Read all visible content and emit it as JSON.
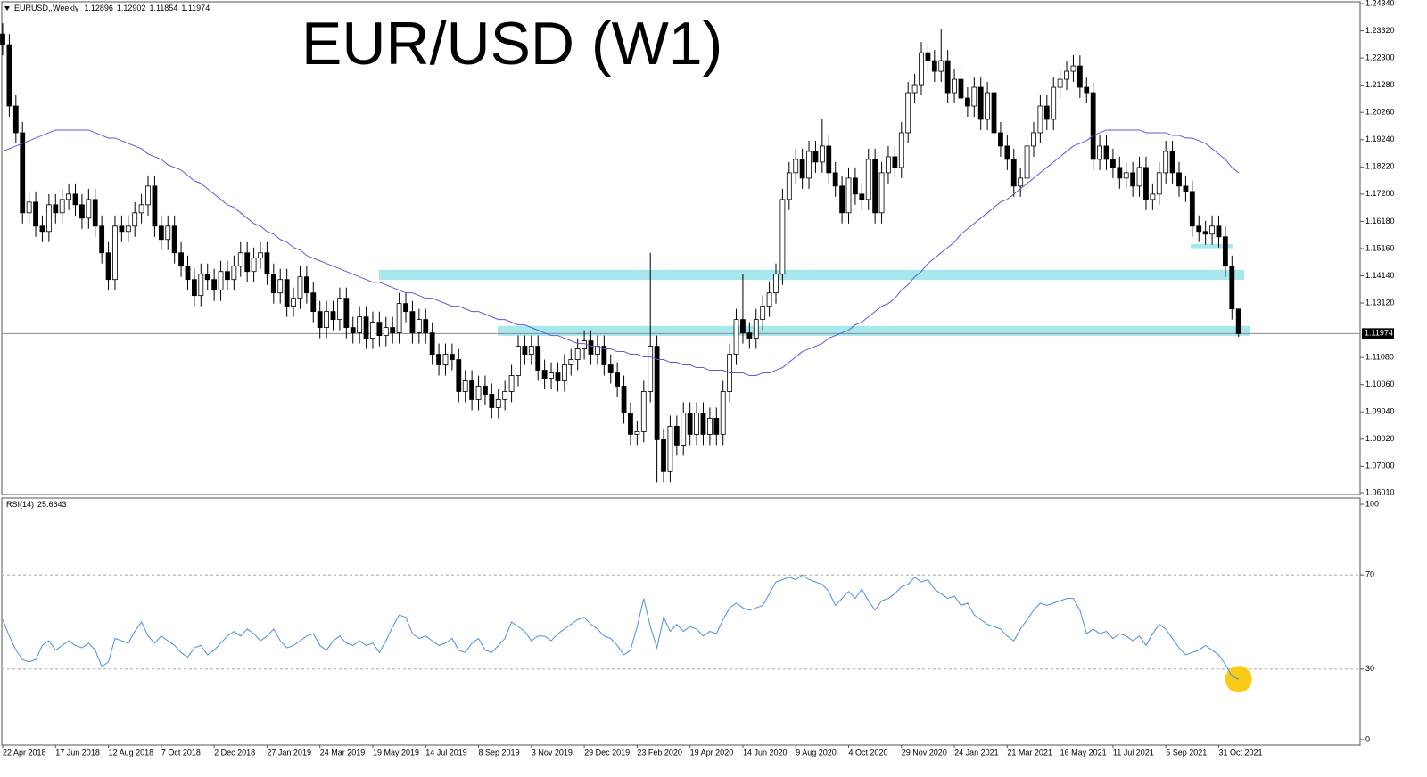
{
  "chart_data": {
    "type": "candlestick",
    "title": "EUR/USD (W1)",
    "symbol": "EURUSD,,Weekly",
    "categories": [
      "22 Apr 2018",
      null,
      null,
      null,
      null,
      null,
      null,
      null,
      "17 Jun 2018",
      null,
      null,
      null,
      null,
      null,
      null,
      null,
      "12 Aug 2018",
      null,
      null,
      null,
      null,
      null,
      null,
      null,
      "7 Oct 2018",
      null,
      null,
      null,
      null,
      null,
      null,
      null,
      "2 Dec 2018",
      null,
      null,
      null,
      null,
      null,
      null,
      null,
      "27 Jan 2019",
      null,
      null,
      null,
      null,
      null,
      null,
      null,
      "24 Mar 2019",
      null,
      null,
      null,
      null,
      null,
      null,
      null,
      "19 May 2019",
      null,
      null,
      null,
      null,
      null,
      null,
      null,
      "14 Jul 2019",
      null,
      null,
      null,
      null,
      null,
      null,
      null,
      "8 Sep 2019",
      null,
      null,
      null,
      null,
      null,
      null,
      null,
      "3 Nov 2019",
      null,
      null,
      null,
      null,
      null,
      null,
      null,
      "29 Dec 2019",
      null,
      null,
      null,
      null,
      null,
      null,
      null,
      "23 Feb 2020",
      null,
      null,
      null,
      null,
      null,
      null,
      null,
      "19 Apr 2020",
      null,
      null,
      null,
      null,
      null,
      null,
      null,
      "14 Jun 2020",
      null,
      null,
      null,
      null,
      null,
      null,
      null,
      "9 Aug 2020",
      null,
      null,
      null,
      null,
      null,
      null,
      null,
      "4 Oct 2020",
      null,
      null,
      null,
      null,
      null,
      null,
      null,
      "29 Nov 2020",
      null,
      null,
      null,
      null,
      null,
      null,
      null,
      "24 Jan 2021",
      null,
      null,
      null,
      null,
      null,
      null,
      null,
      "21 Mar 2021",
      null,
      null,
      null,
      null,
      null,
      null,
      null,
      "16 May 2021",
      null,
      null,
      null,
      null,
      null,
      null,
      null,
      "11 Jul 2021",
      null,
      null,
      null,
      null,
      null,
      null,
      null,
      "5 Sep 2021",
      null,
      null,
      null,
      null,
      null,
      null,
      null,
      "31 Oct 2021",
      null,
      null,
      null
    ],
    "open": [
      1.232,
      1.228,
      1.205,
      1.195,
      1.165,
      1.169,
      1.16,
      1.158,
      1.168,
      1.165,
      1.17,
      1.172,
      1.168,
      1.163,
      1.17,
      1.16,
      1.15,
      1.14,
      1.16,
      1.158,
      1.16,
      1.165,
      1.168,
      1.175,
      1.16,
      1.155,
      1.16,
      1.15,
      1.145,
      1.14,
      1.134,
      1.142,
      1.14,
      1.136,
      1.143,
      1.14,
      1.145,
      1.15,
      1.143,
      1.148,
      1.15,
      1.142,
      1.135,
      1.14,
      1.13,
      1.133,
      1.141,
      1.135,
      1.128,
      1.122,
      1.128,
      1.125,
      1.133,
      1.122,
      1.12,
      1.126,
      1.118,
      1.124,
      1.119,
      1.122,
      1.12,
      1.131,
      1.128,
      1.12,
      1.125,
      1.12,
      1.112,
      1.108,
      1.112,
      1.11,
      1.098,
      1.102,
      1.095,
      1.1,
      1.097,
      1.092,
      1.095,
      1.098,
      1.104,
      1.115,
      1.112,
      1.115,
      1.106,
      1.103,
      1.105,
      1.102,
      1.108,
      1.11,
      1.114,
      1.117,
      1.112,
      1.115,
      1.108,
      1.105,
      1.1,
      1.09,
      1.082,
      1.083,
      1.098,
      1.115,
      1.08,
      1.068,
      1.085,
      1.078,
      1.09,
      1.082,
      1.09,
      1.082,
      1.088,
      1.082,
      1.098,
      1.112,
      1.125,
      1.12,
      1.118,
      1.125,
      1.13,
      1.135,
      1.142,
      1.17,
      1.18,
      1.185,
      1.178,
      1.188,
      1.184,
      1.19,
      1.18,
      1.175,
      1.165,
      1.178,
      1.172,
      1.17,
      1.185,
      1.165,
      1.18,
      1.186,
      1.182,
      1.195,
      1.21,
      1.213,
      1.225,
      1.222,
      1.218,
      1.222,
      1.21,
      1.215,
      1.208,
      1.205,
      1.212,
      1.2,
      1.21,
      1.195,
      1.19,
      1.185,
      1.175,
      1.178,
      1.19,
      1.195,
      1.205,
      1.2,
      1.212,
      1.215,
      1.218,
      1.22,
      1.212,
      1.21,
      1.185,
      1.19,
      1.185,
      1.182,
      1.178,
      1.18,
      1.175,
      1.182,
      1.17,
      1.172,
      1.18,
      1.188,
      1.18,
      1.175,
      1.173,
      1.16,
      1.158,
      1.157,
      1.16,
      1.156,
      1.145,
      1.12896
    ],
    "high": [
      1.236,
      1.232,
      1.209,
      1.199,
      1.173,
      1.173,
      1.164,
      1.172,
      1.172,
      1.174,
      1.176,
      1.176,
      1.172,
      1.174,
      1.174,
      1.164,
      1.154,
      1.164,
      1.164,
      1.164,
      1.169,
      1.172,
      1.179,
      1.179,
      1.164,
      1.164,
      1.164,
      1.154,
      1.149,
      1.144,
      1.146,
      1.146,
      1.144,
      1.147,
      1.147,
      1.149,
      1.154,
      1.154,
      1.152,
      1.154,
      1.154,
      1.146,
      1.144,
      1.144,
      1.137,
      1.145,
      1.145,
      1.139,
      1.132,
      1.132,
      1.132,
      1.137,
      1.137,
      1.126,
      1.13,
      1.13,
      1.128,
      1.128,
      1.126,
      1.126,
      1.135,
      1.135,
      1.132,
      1.129,
      1.129,
      1.124,
      1.116,
      1.116,
      1.116,
      1.114,
      1.106,
      1.106,
      1.104,
      1.104,
      1.101,
      1.099,
      1.102,
      1.108,
      1.119,
      1.119,
      1.119,
      1.119,
      1.11,
      1.109,
      1.109,
      1.112,
      1.114,
      1.118,
      1.121,
      1.121,
      1.119,
      1.119,
      1.112,
      1.109,
      1.104,
      1.094,
      1.087,
      1.102,
      1.15,
      1.119,
      1.084,
      1.089,
      1.089,
      1.094,
      1.094,
      1.094,
      1.094,
      1.092,
      1.092,
      1.102,
      1.116,
      1.129,
      1.142,
      1.124,
      1.129,
      1.134,
      1.139,
      1.146,
      1.174,
      1.184,
      1.189,
      1.189,
      1.192,
      1.192,
      1.2,
      1.194,
      1.184,
      1.179,
      1.182,
      1.182,
      1.176,
      1.189,
      1.189,
      1.184,
      1.19,
      1.19,
      1.199,
      1.214,
      1.217,
      1.229,
      1.229,
      1.226,
      1.234,
      1.226,
      1.219,
      1.219,
      1.212,
      1.216,
      1.216,
      1.214,
      1.214,
      1.199,
      1.194,
      1.189,
      1.182,
      1.194,
      1.199,
      1.209,
      1.209,
      1.216,
      1.219,
      1.222,
      1.224,
      1.224,
      1.216,
      1.214,
      1.194,
      1.194,
      1.189,
      1.186,
      1.184,
      1.184,
      1.186,
      1.186,
      1.176,
      1.184,
      1.192,
      1.192,
      1.184,
      1.179,
      1.177,
      1.164,
      1.162,
      1.164,
      1.164,
      1.16,
      1.149,
      1.12902
    ],
    "low": [
      1.224,
      1.201,
      1.191,
      1.161,
      1.161,
      1.156,
      1.154,
      1.154,
      1.161,
      1.161,
      1.166,
      1.164,
      1.159,
      1.159,
      1.156,
      1.146,
      1.136,
      1.136,
      1.154,
      1.154,
      1.156,
      1.161,
      1.164,
      1.156,
      1.151,
      1.151,
      1.146,
      1.141,
      1.136,
      1.13,
      1.13,
      1.136,
      1.132,
      1.132,
      1.136,
      1.136,
      1.141,
      1.139,
      1.139,
      1.144,
      1.138,
      1.131,
      1.131,
      1.126,
      1.126,
      1.129,
      1.131,
      1.124,
      1.118,
      1.118,
      1.121,
      1.121,
      1.118,
      1.116,
      1.116,
      1.114,
      1.114,
      1.115,
      1.115,
      1.116,
      1.116,
      1.124,
      1.116,
      1.116,
      1.116,
      1.108,
      1.104,
      1.104,
      1.106,
      1.094,
      1.094,
      1.091,
      1.091,
      1.093,
      1.088,
      1.088,
      1.091,
      1.094,
      1.1,
      1.108,
      1.108,
      1.102,
      1.099,
      1.099,
      1.098,
      1.098,
      1.104,
      1.106,
      1.11,
      1.108,
      1.108,
      1.104,
      1.101,
      1.096,
      1.086,
      1.078,
      1.078,
      1.079,
      1.094,
      1.064,
      1.064,
      1.064,
      1.074,
      1.074,
      1.078,
      1.078,
      1.078,
      1.078,
      1.078,
      1.078,
      1.094,
      1.108,
      1.116,
      1.114,
      1.114,
      1.121,
      1.126,
      1.131,
      1.138,
      1.166,
      1.176,
      1.174,
      1.174,
      1.18,
      1.18,
      1.176,
      1.171,
      1.161,
      1.161,
      1.168,
      1.166,
      1.166,
      1.161,
      1.161,
      1.176,
      1.178,
      1.178,
      1.191,
      1.206,
      1.209,
      1.218,
      1.214,
      1.214,
      1.206,
      1.206,
      1.204,
      1.201,
      1.201,
      1.196,
      1.196,
      1.191,
      1.186,
      1.181,
      1.171,
      1.171,
      1.174,
      1.186,
      1.191,
      1.196,
      1.196,
      1.208,
      1.211,
      1.214,
      1.208,
      1.206,
      1.181,
      1.181,
      1.181,
      1.178,
      1.174,
      1.174,
      1.171,
      1.171,
      1.166,
      1.166,
      1.168,
      1.176,
      1.176,
      1.171,
      1.169,
      1.156,
      1.154,
      1.153,
      1.153,
      1.152,
      1.141,
      1.125,
      1.11854
    ],
    "close": [
      1.228,
      1.205,
      1.195,
      1.165,
      1.169,
      1.16,
      1.158,
      1.168,
      1.165,
      1.17,
      1.172,
      1.168,
      1.163,
      1.17,
      1.16,
      1.15,
      1.14,
      1.16,
      1.158,
      1.16,
      1.165,
      1.168,
      1.175,
      1.16,
      1.155,
      1.16,
      1.15,
      1.145,
      1.14,
      1.134,
      1.142,
      1.14,
      1.136,
      1.143,
      1.14,
      1.145,
      1.15,
      1.143,
      1.148,
      1.15,
      1.142,
      1.135,
      1.14,
      1.13,
      1.133,
      1.141,
      1.135,
      1.128,
      1.122,
      1.128,
      1.125,
      1.133,
      1.122,
      1.12,
      1.126,
      1.118,
      1.124,
      1.119,
      1.122,
      1.12,
      1.131,
      1.128,
      1.12,
      1.125,
      1.12,
      1.112,
      1.108,
      1.112,
      1.11,
      1.098,
      1.102,
      1.095,
      1.1,
      1.097,
      1.092,
      1.095,
      1.098,
      1.104,
      1.115,
      1.112,
      1.115,
      1.106,
      1.103,
      1.105,
      1.102,
      1.108,
      1.11,
      1.114,
      1.117,
      1.112,
      1.115,
      1.108,
      1.105,
      1.1,
      1.09,
      1.082,
      1.083,
      1.098,
      1.115,
      1.08,
      1.068,
      1.085,
      1.078,
      1.09,
      1.082,
      1.09,
      1.082,
      1.088,
      1.082,
      1.098,
      1.112,
      1.125,
      1.12,
      1.118,
      1.125,
      1.13,
      1.135,
      1.142,
      1.17,
      1.18,
      1.185,
      1.178,
      1.188,
      1.184,
      1.19,
      1.18,
      1.175,
      1.165,
      1.178,
      1.172,
      1.17,
      1.185,
      1.165,
      1.18,
      1.186,
      1.182,
      1.195,
      1.21,
      1.213,
      1.225,
      1.222,
      1.218,
      1.222,
      1.21,
      1.215,
      1.208,
      1.205,
      1.212,
      1.2,
      1.21,
      1.195,
      1.19,
      1.185,
      1.175,
      1.178,
      1.19,
      1.195,
      1.205,
      1.2,
      1.212,
      1.215,
      1.218,
      1.22,
      1.212,
      1.21,
      1.185,
      1.19,
      1.185,
      1.182,
      1.178,
      1.18,
      1.175,
      1.182,
      1.17,
      1.172,
      1.18,
      1.188,
      1.18,
      1.175,
      1.173,
      1.16,
      1.158,
      1.157,
      1.16,
      1.156,
      1.145,
      1.129,
      1.11974
    ],
    "ma": {
      "color": "#5b5bd6",
      "values": [
        1.188,
        1.189,
        1.19,
        1.191,
        1.192,
        1.193,
        1.194,
        1.195,
        1.196,
        1.196,
        1.196,
        1.196,
        1.196,
        1.196,
        1.195,
        1.194,
        1.193,
        1.193,
        1.192,
        1.191,
        1.19,
        1.189,
        1.187,
        1.186,
        1.185,
        1.183,
        1.182,
        1.181,
        1.179,
        1.177,
        1.176,
        1.174,
        1.172,
        1.17,
        1.168,
        1.167,
        1.165,
        1.163,
        1.161,
        1.16,
        1.158,
        1.157,
        1.155,
        1.154,
        1.152,
        1.151,
        1.149,
        1.148,
        1.147,
        1.146,
        1.145,
        1.144,
        1.143,
        1.142,
        1.141,
        1.14,
        1.139,
        1.139,
        1.138,
        1.137,
        1.136,
        1.135,
        1.135,
        1.134,
        1.133,
        1.133,
        1.132,
        1.131,
        1.13,
        1.13,
        1.129,
        1.128,
        1.128,
        1.127,
        1.126,
        1.125,
        1.125,
        1.124,
        1.123,
        1.123,
        1.122,
        1.121,
        1.12,
        1.119,
        1.119,
        1.118,
        1.117,
        1.116,
        1.116,
        1.115,
        1.115,
        1.114,
        1.114,
        1.113,
        1.113,
        1.112,
        1.112,
        1.111,
        1.111,
        1.11,
        1.11,
        1.109,
        1.109,
        1.108,
        1.108,
        1.107,
        1.107,
        1.106,
        1.106,
        1.106,
        1.105,
        1.105,
        1.105,
        1.104,
        1.104,
        1.105,
        1.105,
        1.106,
        1.107,
        1.109,
        1.111,
        1.113,
        1.114,
        1.115,
        1.116,
        1.118,
        1.119,
        1.12,
        1.121,
        1.123,
        1.124,
        1.126,
        1.128,
        1.13,
        1.131,
        1.133,
        1.136,
        1.138,
        1.141,
        1.143,
        1.146,
        1.148,
        1.15,
        1.152,
        1.154,
        1.157,
        1.159,
        1.161,
        1.163,
        1.165,
        1.167,
        1.169,
        1.17,
        1.172,
        1.174,
        1.176,
        1.178,
        1.18,
        1.182,
        1.184,
        1.186,
        1.188,
        1.19,
        1.191,
        1.192,
        1.194,
        1.195,
        1.196,
        1.196,
        1.196,
        1.196,
        1.196,
        1.196,
        1.195,
        1.195,
        1.195,
        1.195,
        1.194,
        1.194,
        1.193,
        1.193,
        1.192,
        1.191,
        1.189,
        1.187,
        1.185,
        1.182,
        1.18
      ]
    },
    "zones": [
      {
        "low": 1.1399,
        "high": 1.1436
      },
      {
        "low": 1.1189,
        "high": 1.1226
      },
      {
        "low": 1.1517,
        "high": 1.1533
      }
    ],
    "zone_color": "#a6e8ee",
    "ylim": [
      1.0601,
      1.2434
    ],
    "yticks": [
      {
        "value": 1.2434,
        "label": "1.24340"
      },
      {
        "value": 1.2332,
        "label": "1.23320"
      },
      {
        "value": 1.223,
        "label": "1.22300"
      },
      {
        "value": 1.2128,
        "label": "1.21280"
      },
      {
        "value": 1.2026,
        "label": "1.20260"
      },
      {
        "value": 1.1924,
        "label": "1.19240"
      },
      {
        "value": 1.1822,
        "label": "1.18220"
      },
      {
        "value": 1.172,
        "label": "1.17200"
      },
      {
        "value": 1.1618,
        "label": "1.16180"
      },
      {
        "value": 1.1516,
        "label": "1.15160"
      },
      {
        "value": 1.1414,
        "label": "1.14140"
      },
      {
        "value": 1.1312,
        "label": "1.13120"
      },
      {
        "value": 1.1108,
        "label": "1.11080"
      },
      {
        "value": 1.1006,
        "label": "1.10060"
      },
      {
        "value": 1.0904,
        "label": "1.09040"
      },
      {
        "value": 1.0802,
        "label": "1.08020"
      },
      {
        "value": 1.07,
        "label": "1.07000"
      },
      {
        "value": 1.0601,
        "label": "1.06010"
      }
    ],
    "grid": false,
    "rsi": {
      "name": "RSI(14)",
      "color": "#4a8fe0",
      "ylim": [
        0,
        100
      ],
      "yticks": [
        100,
        70,
        30,
        0
      ],
      "values": [
        51,
        44,
        38,
        34,
        33,
        34,
        40,
        42,
        38,
        40,
        42,
        40,
        39,
        41,
        38,
        31,
        33,
        43,
        42,
        41,
        46,
        50,
        44,
        41,
        44,
        42,
        40,
        37,
        35,
        39,
        40,
        36,
        38,
        41,
        44,
        46,
        44,
        47,
        45,
        42,
        44,
        47,
        42,
        39,
        40,
        42,
        44,
        45,
        40,
        38,
        42,
        44,
        41,
        40,
        42,
        40,
        41,
        37,
        42,
        48,
        53,
        52,
        45,
        43,
        44,
        42,
        40,
        41,
        43,
        38,
        37,
        41,
        43,
        38,
        37,
        40,
        43,
        50,
        48,
        46,
        42,
        44,
        44,
        42,
        45,
        47,
        49,
        51,
        52,
        49,
        47,
        44,
        43,
        40,
        36,
        38,
        48,
        60,
        48,
        39,
        52,
        46,
        49,
        46,
        48,
        47,
        44,
        46,
        45,
        51,
        56,
        58,
        56,
        55,
        56,
        57,
        62,
        67,
        68,
        69,
        68,
        70,
        68,
        67,
        66,
        63,
        57,
        60,
        63,
        60,
        64,
        59,
        55,
        59,
        60,
        62,
        65,
        66,
        69,
        67,
        68,
        64,
        62,
        60,
        61,
        57,
        58,
        53,
        51,
        49,
        48,
        47,
        44,
        42,
        47,
        51,
        55,
        58,
        57,
        58,
        59,
        60,
        60,
        55,
        45,
        47,
        45,
        46,
        43,
        45,
        44,
        42,
        44,
        40,
        45,
        49,
        47,
        43,
        39,
        36,
        37,
        38,
        40,
        38,
        36,
        32,
        27,
        25.6643
      ]
    }
  }
}
